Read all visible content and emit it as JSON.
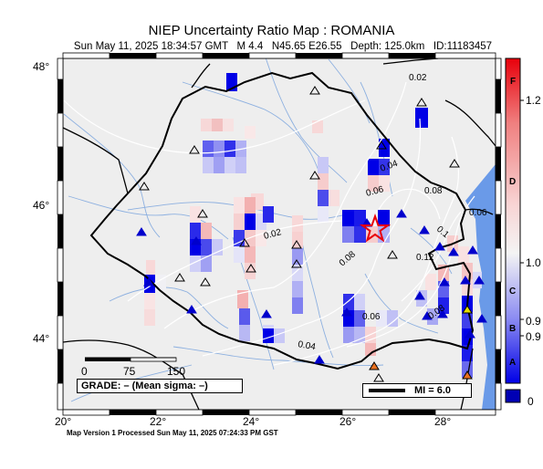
{
  "header": {
    "title": "NIEP Uncertainty Ratio Map : ROMANIA",
    "subtitle": "Sun May 11, 2025 18:34:57 GMT   M 4.4   N45.65 E26.55   Depth: 125.0km   ID:11183457"
  },
  "map": {
    "lat_ticks": [
      "48°",
      "46°",
      "44°"
    ],
    "lon_ticks": [
      "20°",
      "22°",
      "24°",
      "26°",
      "28°"
    ],
    "contour_labels": [
      "0.02",
      "0.04",
      "0.06",
      "0.08",
      "0.06",
      "0.1",
      "0.12",
      "0.08",
      "0.06",
      "0.02",
      "0.04",
      "0.08"
    ],
    "epicenter": {
      "lat": 45.65,
      "lon": 26.55
    }
  },
  "scale_bar": {
    "labels": [
      "0",
      "75",
      "150"
    ]
  },
  "grade": {
    "text": "GRADE: – (Mean sigma: –)"
  },
  "mi_legend": {
    "text": "MI = 6.0"
  },
  "colorbar": {
    "letters": [
      "F",
      "D",
      "C",
      "B",
      "A"
    ],
    "values": [
      "1.2",
      "1.0",
      "0.9",
      "0.9",
      "0"
    ],
    "colors": {
      "high": "#e8000b",
      "mid": "#f4f4f4",
      "low": "#0000e6",
      "bottom": "#0000b4",
      "water": "#6a9ae8"
    }
  },
  "footer": {
    "text": "Map Version 1 Processed Sun May 11, 2025 07:24:33 PM GST"
  }
}
